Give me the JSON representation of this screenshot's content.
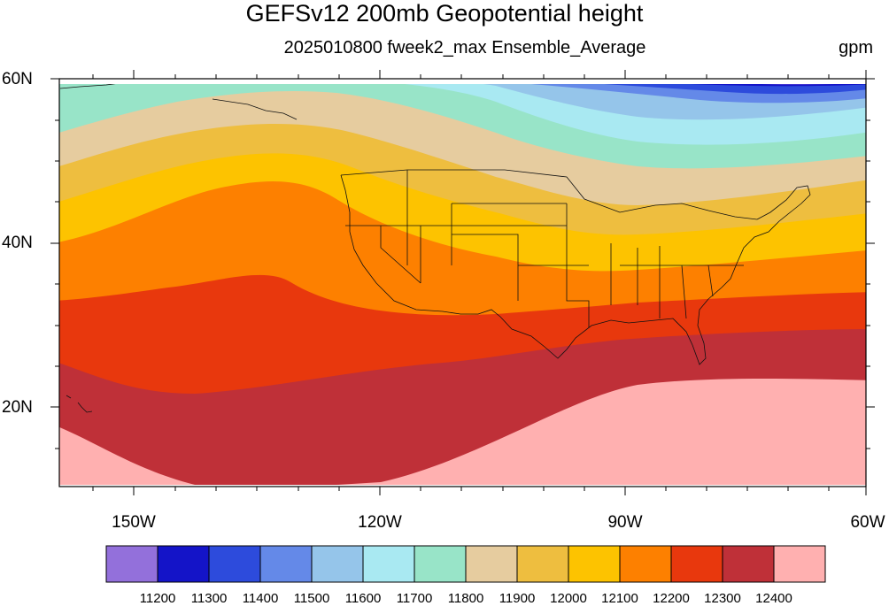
{
  "title": "GEFSv12 200mb Geopotential height",
  "subtitle": "2025010800 fweek2_max Ensemble_Average",
  "units": "gpm",
  "map": {
    "projection": "cylindrical equidistant",
    "lon_range": [
      -159,
      -60
    ],
    "lat_range": [
      10,
      60
    ],
    "lat_labels": [
      "60N",
      "40N",
      "20N"
    ],
    "lon_labels": [
      "150W",
      "120W",
      "90W",
      "60W"
    ]
  },
  "colorbar": {
    "levels": [
      "11200",
      "11300",
      "11400",
      "11500",
      "11600",
      "11700",
      "11800",
      "11900",
      "12000",
      "12100",
      "12200",
      "12300",
      "12400"
    ],
    "colors": [
      "#9370db",
      "#1414c8",
      "#2d4bdc",
      "#6489e8",
      "#95c5ea",
      "#a9e9f2",
      "#98e4c8",
      "#e6cc9f",
      "#eebe3f",
      "#fdc300",
      "#fd8000",
      "#e8380d",
      "#bf3038",
      "#ffb0b0"
    ]
  }
}
